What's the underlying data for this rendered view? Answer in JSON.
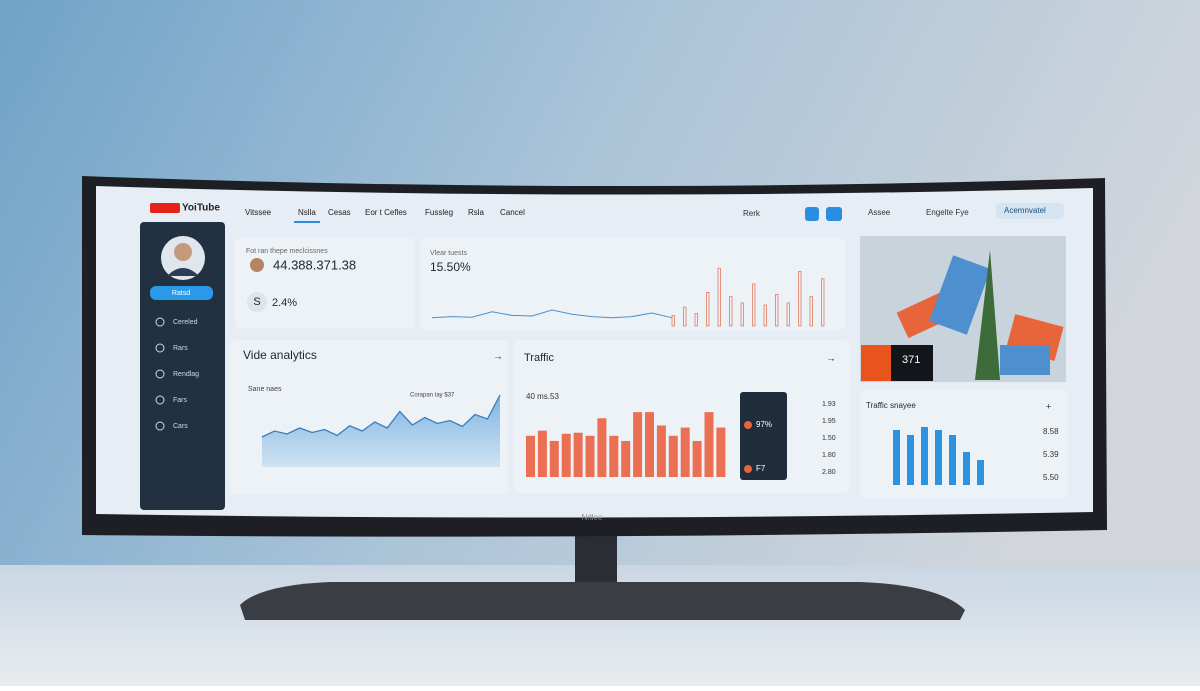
{
  "header": {
    "logo": "YoiTube",
    "nav": [
      "Vitssee",
      "Nslla",
      "Cesas",
      "Eor t Cefles",
      "Fussleg",
      "Rsla",
      "Cancel"
    ],
    "search": "Rerk",
    "account": "Assee",
    "settings": "Engelte Fye",
    "action": "Acemnvatel"
  },
  "sidebar": {
    "button": "Ratsd",
    "items": [
      "Cereled",
      "Rars",
      "Rendlag",
      "Fars",
      "Cars"
    ]
  },
  "stats": {
    "label": "Fot ran thepe meclcissnes",
    "total": "44.388.371.38",
    "badge": "S",
    "change": "2.4%"
  },
  "views": {
    "label": "Vlear tuests",
    "rate": "15.50%",
    "line": [
      12,
      14,
      13,
      22,
      16,
      15,
      25,
      18,
      14,
      12,
      14,
      20,
      12
    ],
    "bars": [
      10,
      18,
      12,
      32,
      55,
      28,
      22,
      40,
      20,
      30,
      22,
      52,
      28,
      45
    ]
  },
  "video_analytics": {
    "title": "Vide analytics",
    "subtitle": "Sane naes",
    "note": "Corapan tay $37",
    "values": [
      40,
      48,
      44,
      52,
      46,
      50,
      42,
      55,
      48,
      60,
      52,
      74,
      56,
      66,
      58,
      62,
      54,
      70,
      64,
      96
    ]
  },
  "traffic": {
    "title": "Traffic",
    "subtitle": "40 ms.53",
    "values": [
      40,
      45,
      35,
      42,
      43,
      40,
      57,
      40,
      35,
      63,
      63,
      50,
      40,
      48,
      35,
      63,
      48
    ],
    "legend": [
      "97%",
      "F7"
    ],
    "numbers": [
      "1.93",
      "1.95",
      "1.50",
      "1.80",
      "2.80"
    ]
  },
  "promo": {
    "label": "371"
  },
  "traffic_snapshot": {
    "title": "Traffic snayee",
    "values": [
      55,
      50,
      58,
      55,
      50,
      33,
      25
    ],
    "stats": [
      "8.58",
      "5.39",
      "5.50"
    ]
  },
  "brand": "Nrllee"
}
